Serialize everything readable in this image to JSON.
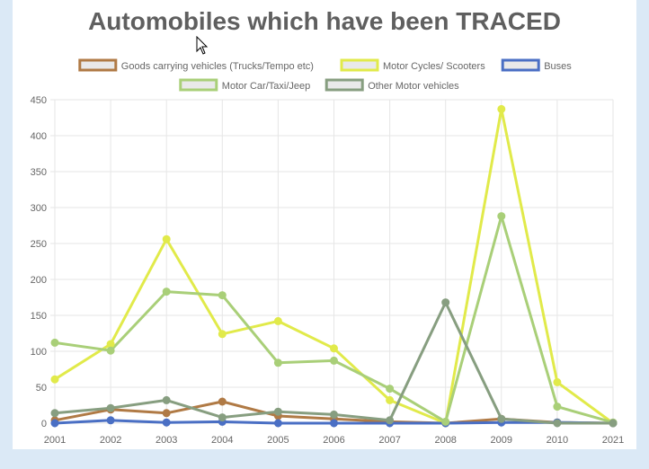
{
  "chart_data": {
    "type": "line",
    "title": "Automobiles which have been TRACED",
    "categories": [
      "2001",
      "2002",
      "2003",
      "2004",
      "2005",
      "2006",
      "2007",
      "2008",
      "2009",
      "2010",
      "2021"
    ],
    "ylim": [
      0,
      450
    ],
    "yticks": [
      0,
      50,
      100,
      150,
      200,
      250,
      300,
      350,
      400,
      450
    ],
    "grid": true,
    "legend_position": "top",
    "series": [
      {
        "name": "Goods carrying vehicles (Trucks/Tempo etc)",
        "color": "#b07a45",
        "values": [
          4,
          19,
          14,
          30,
          10,
          6,
          2,
          0,
          6,
          1,
          0
        ]
      },
      {
        "name": "Motor Cycles/ Scooters",
        "color": "#e1ea4a",
        "values": [
          61,
          110,
          256,
          124,
          142,
          104,
          32,
          0,
          437,
          57,
          0
        ]
      },
      {
        "name": "Buses",
        "color": "#4a6fc4",
        "values": [
          0,
          4,
          1,
          2,
          0,
          0,
          0,
          0,
          1,
          1,
          0
        ]
      },
      {
        "name": "Motor Car/Taxi/Jeep",
        "color": "#a9cf78",
        "values": [
          112,
          101,
          183,
          178,
          84,
          87,
          48,
          2,
          288,
          23,
          1
        ]
      },
      {
        "name": "Other Motor vehicles",
        "color": "#879e80",
        "values": [
          14,
          21,
          32,
          8,
          16,
          12,
          4,
          168,
          6,
          0,
          0
        ]
      }
    ]
  }
}
